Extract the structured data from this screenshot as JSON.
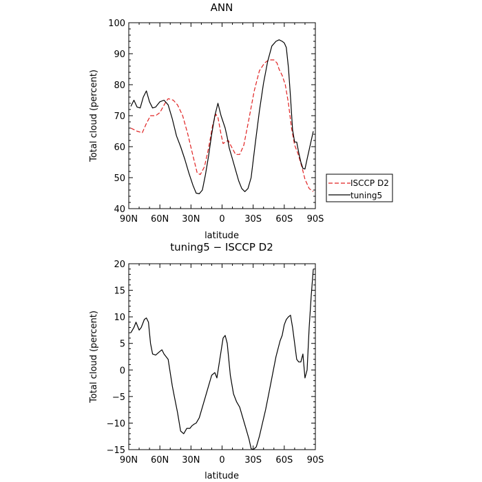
{
  "chart_data": [
    {
      "type": "line",
      "title": "ANN",
      "xlabel": "latitude",
      "ylabel": "Total cloud (percent)",
      "xlim": [
        -90,
        90
      ],
      "ylim": [
        40,
        100
      ],
      "x_ticks": [
        -90,
        -60,
        -30,
        0,
        30,
        60,
        90
      ],
      "x_tick_labels": [
        "90N",
        "60N",
        "30N",
        "0",
        "30S",
        "60S",
        "90S"
      ],
      "y_ticks": [
        40,
        50,
        60,
        70,
        80,
        90,
        100
      ],
      "y_tick_labels": [
        "40",
        "50",
        "60",
        "70",
        "80",
        "90",
        "100"
      ],
      "grid": false,
      "legend_placement": "right-outside",
      "series": [
        {
          "name": "ISCCP D2",
          "color": "#e02020",
          "dash": "dashed",
          "x": [
            -88,
            -82,
            -77,
            -73,
            -69,
            -64,
            -60,
            -55,
            -52,
            -47,
            -43,
            -38,
            -33,
            -28,
            -24,
            -21,
            -17,
            -13,
            -9,
            -6,
            -4,
            -1,
            1,
            3,
            6,
            9,
            13,
            17,
            21,
            26,
            31,
            36,
            41,
            45,
            50,
            53,
            55,
            58,
            61,
            64,
            67,
            70,
            73,
            77,
            80,
            84,
            88
          ],
          "y": [
            66,
            65,
            64.5,
            67.5,
            70,
            70,
            71,
            74,
            75.5,
            75,
            73.5,
            70,
            64,
            57,
            51.5,
            51,
            53.5,
            59.5,
            67,
            70.5,
            69.5,
            64,
            61,
            61.5,
            62,
            60,
            57.5,
            57.5,
            60.5,
            69,
            78,
            84.5,
            87,
            88,
            88,
            87,
            85,
            83,
            80,
            74,
            66,
            60.5,
            58,
            53.5,
            49.5,
            46.5,
            45.5
          ]
        },
        {
          "name": "tuning5",
          "color": "#000000",
          "dash": "solid",
          "x": [
            -88,
            -85,
            -82,
            -79,
            -76,
            -73,
            -70,
            -67,
            -64,
            -60,
            -56,
            -52,
            -48,
            -44,
            -40,
            -36,
            -32,
            -28,
            -25,
            -22,
            -19,
            -16,
            -13,
            -10,
            -7,
            -4,
            -1,
            1,
            3,
            5,
            7,
            10,
            13,
            16,
            19,
            22,
            25,
            28,
            32,
            36,
            40,
            44,
            48,
            52,
            55,
            58,
            60,
            62,
            64,
            66,
            68,
            70,
            72,
            74,
            76,
            78,
            80,
            82,
            84,
            86,
            88
          ],
          "y": [
            73,
            75,
            72.8,
            72.5,
            76,
            78,
            74.5,
            72.5,
            72.8,
            74.5,
            75,
            73.5,
            69,
            63.5,
            60,
            56,
            51.5,
            47.5,
            45,
            44.8,
            46,
            51,
            57,
            64,
            70,
            74,
            70,
            68,
            66,
            63,
            59.5,
            56,
            52.5,
            49,
            46.5,
            45.5,
            46.5,
            50,
            61,
            71.5,
            80.5,
            87.5,
            92.5,
            94,
            94.5,
            94,
            93.5,
            92,
            85.5,
            76,
            65.5,
            61.5,
            61.5,
            58,
            55,
            53,
            52.8,
            56,
            59,
            62,
            65
          ]
        }
      ]
    },
    {
      "type": "line",
      "title": "tuning5 − ISCCP D2",
      "xlabel": "latitude",
      "ylabel": "Total cloud (percent)",
      "xlim": [
        -90,
        90
      ],
      "ylim": [
        -15,
        20
      ],
      "x_ticks": [
        -90,
        -60,
        -30,
        0,
        30,
        60,
        90
      ],
      "x_tick_labels": [
        "90N",
        "60N",
        "30N",
        "0",
        "30S",
        "60S",
        "90S"
      ],
      "y_ticks": [
        -15,
        -10,
        -5,
        0,
        5,
        10,
        15,
        20
      ],
      "y_tick_labels": [
        "−15",
        "−10",
        "−5",
        "0",
        "5",
        "10",
        "15",
        "20"
      ],
      "grid": false,
      "series": [
        {
          "color": "#000000",
          "dash": "solid",
          "x": [
            -88,
            -85,
            -83,
            -80,
            -78,
            -75,
            -73,
            -71,
            -69,
            -67,
            -64,
            -60,
            -58,
            -56,
            -52,
            -48,
            -46,
            -43,
            -40,
            -37,
            -34,
            -31,
            -29,
            -27,
            -25,
            -22,
            -19,
            -16,
            -13,
            -10,
            -7,
            -5,
            -3,
            -1,
            1,
            3,
            5,
            8,
            11,
            14,
            17,
            20,
            23,
            26,
            28,
            30,
            33,
            36,
            39,
            42,
            45,
            48,
            50,
            52,
            54,
            56,
            58,
            60,
            62,
            64,
            66,
            68,
            70,
            72,
            74,
            76,
            78,
            80,
            82,
            84,
            86,
            88
          ],
          "y": [
            7,
            8,
            9,
            7.5,
            8,
            9.5,
            9.8,
            9,
            5,
            3,
            2.8,
            3.5,
            3.8,
            3,
            2,
            -3,
            -5,
            -8,
            -11.5,
            -12,
            -11,
            -11,
            -10.5,
            -10.2,
            -10,
            -9,
            -7,
            -5,
            -3,
            -1,
            -0.5,
            -1.5,
            1,
            3.5,
            6,
            6.5,
            5,
            -1,
            -4.5,
            -6,
            -7,
            -9,
            -11,
            -13,
            -14.8,
            -15,
            -14.5,
            -12.5,
            -10,
            -7.5,
            -4.5,
            -1.5,
            0.5,
            2.5,
            4,
            5.5,
            6.5,
            8.5,
            9.5,
            10,
            10.3,
            8,
            5,
            2,
            1.5,
            1.5,
            3,
            -1.5,
            0,
            8,
            14,
            19
          ]
        }
      ]
    }
  ]
}
